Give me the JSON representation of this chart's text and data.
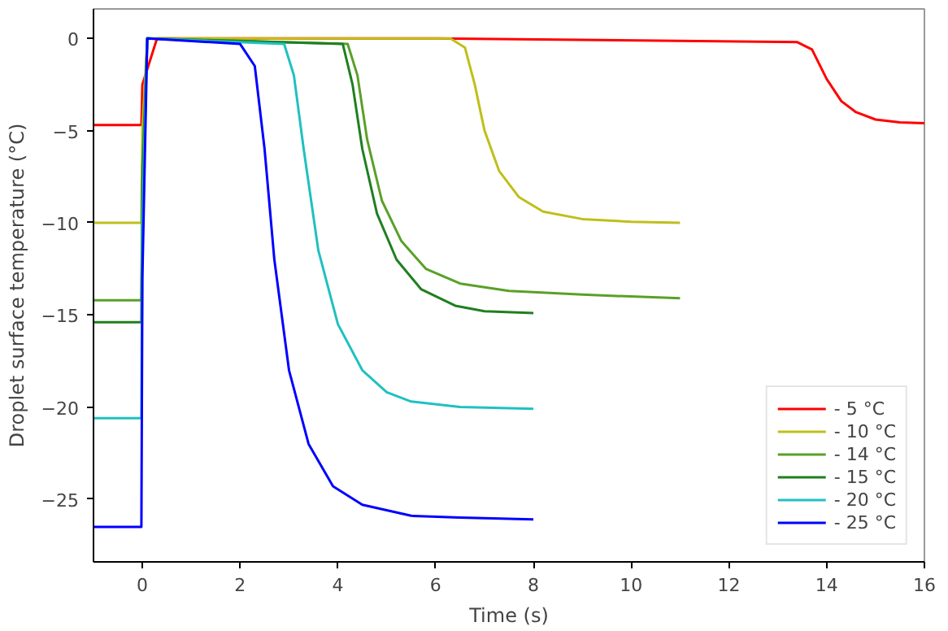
{
  "chart_data": {
    "type": "line",
    "xlabel": "Time (s)",
    "ylabel": "Droplet surface temperature (°C)",
    "xlim": [
      -1,
      16
    ],
    "ylim": [
      -28.4,
      1.6
    ],
    "xticks": [
      0,
      2,
      4,
      6,
      8,
      10,
      12,
      14,
      16
    ],
    "yticks": [
      0,
      -5,
      -10,
      -15,
      -20,
      -25
    ],
    "grid": false,
    "legend": "bottom right",
    "line_style": "solid",
    "marker": "none",
    "series": [
      {
        "name": "- 5 °C",
        "color": "#ff0000",
        "x": [
          -1,
          -0.02,
          0,
          0.3,
          6,
          13.4,
          13.7,
          14.0,
          14.3,
          14.6,
          15.0,
          15.5,
          16
        ],
        "values": [
          -4.7,
          -4.7,
          -2.5,
          0,
          0,
          -0.2,
          -0.6,
          -2.2,
          -3.4,
          -4.0,
          -4.4,
          -4.55,
          -4.6
        ]
      },
      {
        "name": "- 10 °C",
        "color": "#bfbf1a",
        "x": [
          -1,
          -0.02,
          0,
          0.1,
          6.3,
          6.6,
          6.8,
          7.0,
          7.3,
          7.7,
          8.2,
          9,
          10,
          11
        ],
        "values": [
          -10,
          -10,
          -5,
          0,
          0,
          -0.5,
          -2.5,
          -5,
          -7.2,
          -8.6,
          -9.4,
          -9.8,
          -9.95,
          -10
        ]
      },
      {
        "name": "- 14 °C",
        "color": "#5aa028",
        "x": [
          -1,
          -0.02,
          0,
          0.1,
          4.2,
          4.4,
          4.6,
          4.9,
          5.3,
          5.8,
          6.5,
          7.5,
          9,
          11
        ],
        "values": [
          -14.2,
          -14.2,
          -7,
          0,
          -0.3,
          -2,
          -5.5,
          -8.8,
          -11,
          -12.5,
          -13.3,
          -13.7,
          -13.9,
          -14.1
        ]
      },
      {
        "name": "- 15 °C",
        "color": "#1f7f1f",
        "x": [
          -1,
          -0.02,
          0,
          0.1,
          4.1,
          4.3,
          4.5,
          4.8,
          5.2,
          5.7,
          6.4,
          7,
          8
        ],
        "values": [
          -15.4,
          -15.4,
          -8,
          0,
          -0.3,
          -2.5,
          -6,
          -9.5,
          -12,
          -13.6,
          -14.5,
          -14.8,
          -14.9
        ]
      },
      {
        "name": "- 20 °C",
        "color": "#20c0c0",
        "x": [
          -1,
          -0.02,
          0,
          0.1,
          2.9,
          3.1,
          3.3,
          3.6,
          4.0,
          4.5,
          5.0,
          5.5,
          6.5,
          8
        ],
        "values": [
          -20.6,
          -20.6,
          -10,
          0,
          -0.3,
          -2,
          -6,
          -11.5,
          -15.5,
          -18,
          -19.2,
          -19.7,
          -20,
          -20.1
        ]
      },
      {
        "name": "- 25 °C",
        "color": "#0000ff",
        "x": [
          -1,
          -0.02,
          0,
          0.1,
          2.0,
          2.3,
          2.5,
          2.7,
          3.0,
          3.4,
          3.9,
          4.5,
          5.5,
          6.5,
          8
        ],
        "values": [
          -26.5,
          -26.5,
          -13,
          0,
          -0.3,
          -1.5,
          -6,
          -12,
          -18,
          -22,
          -24.3,
          -25.3,
          -25.9,
          -26,
          -26.1
        ]
      }
    ]
  }
}
